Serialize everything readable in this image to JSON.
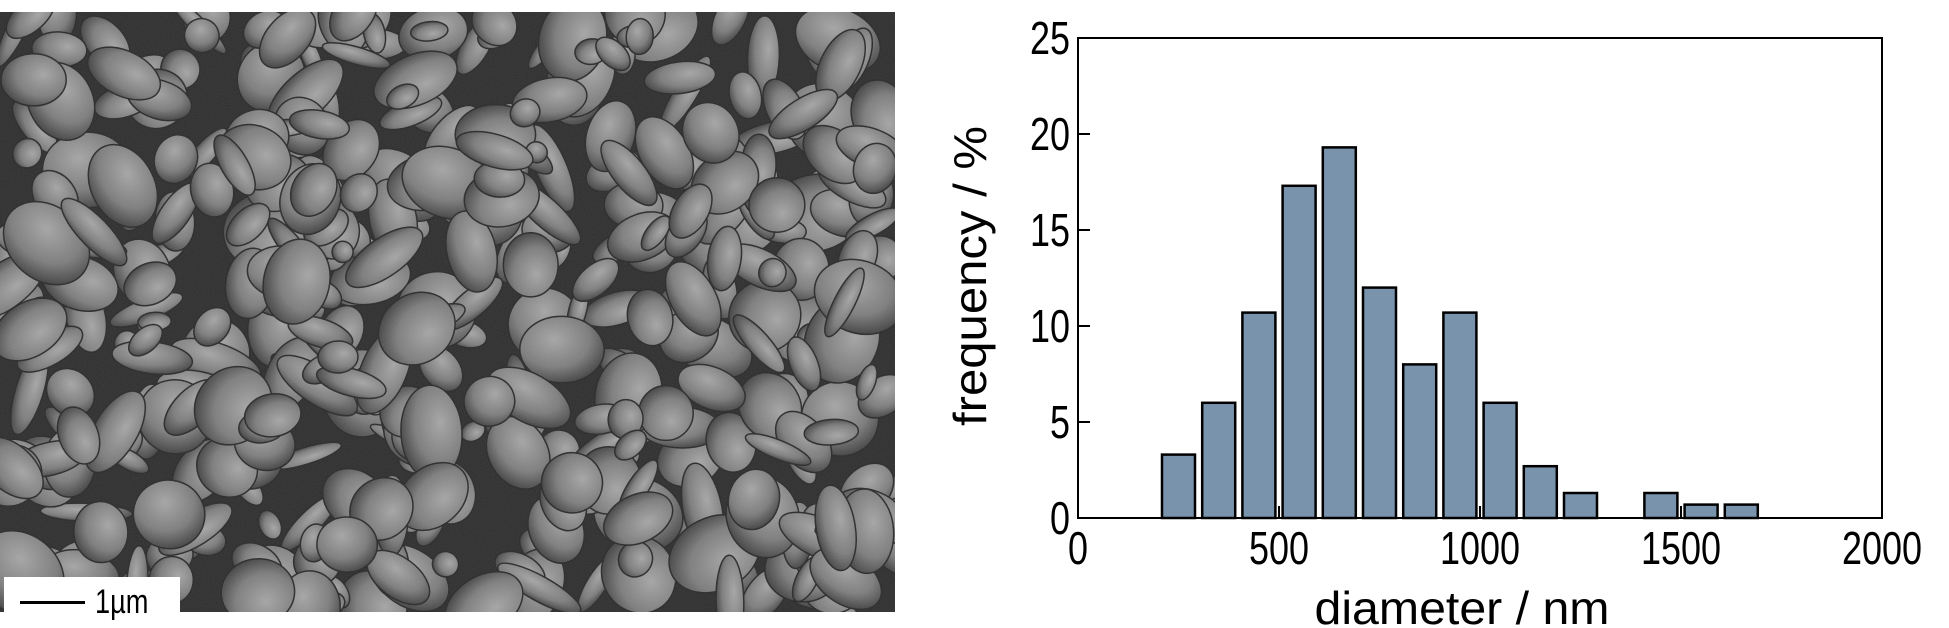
{
  "sem_image": {
    "scale_bar_label": "1µm"
  },
  "chart_data": {
    "type": "bar",
    "title": "",
    "xlabel": "diameter / nm",
    "ylabel": "frequency / %",
    "xlim": [
      0,
      2000
    ],
    "ylim": [
      0,
      25
    ],
    "x_ticks": [
      0,
      500,
      1000,
      1500,
      2000
    ],
    "y_ticks": [
      0,
      5,
      10,
      15,
      20,
      25
    ],
    "bar_color": "#7a93ad",
    "bin_width": 100,
    "bins": [
      250,
      350,
      450,
      550,
      650,
      750,
      850,
      950,
      1050,
      1150,
      1250,
      1350,
      1450,
      1550,
      1650
    ],
    "values": [
      3.3,
      6.0,
      10.7,
      17.3,
      19.3,
      12.0,
      8.0,
      10.7,
      6.0,
      2.7,
      1.3,
      0,
      1.3,
      0.7,
      0.7
    ],
    "grid": false,
    "legend": "none"
  }
}
